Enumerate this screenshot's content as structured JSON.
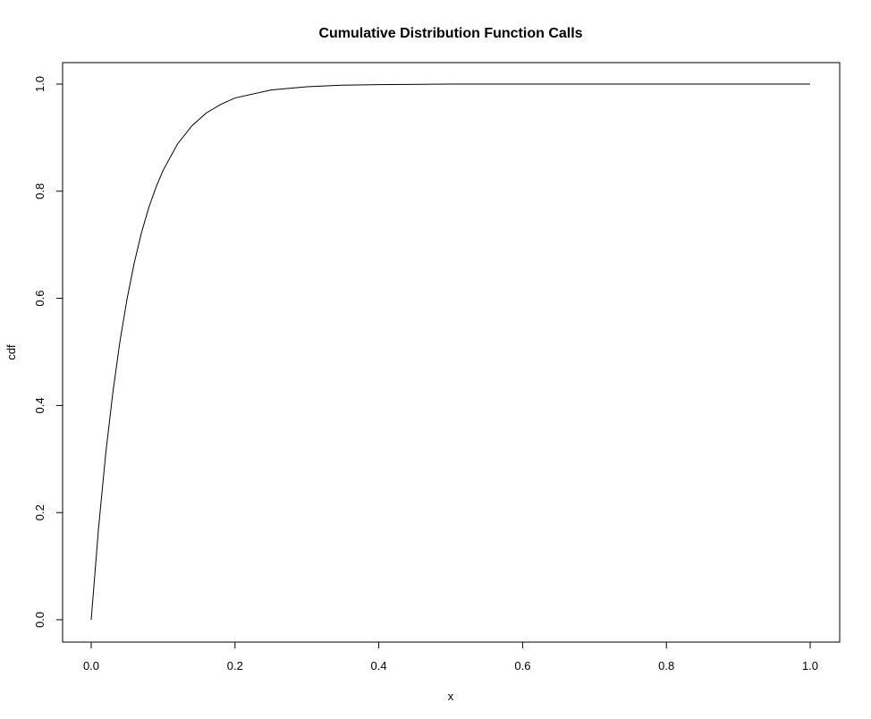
{
  "chart_data": {
    "type": "line",
    "title": "Cumulative Distribution Function Calls",
    "xlabel": "x",
    "ylabel": "cdf",
    "xlim": [
      0.0,
      1.0
    ],
    "ylim": [
      0.0,
      1.0
    ],
    "x_ticks": [
      "0.0",
      "0.2",
      "0.4",
      "0.6",
      "0.8",
      "1.0"
    ],
    "y_ticks": [
      "0.0",
      "0.2",
      "0.4",
      "0.6",
      "0.8",
      "1.0"
    ],
    "grid": false,
    "legend": "none",
    "line_color": "#000000",
    "series": [
      {
        "x": [
          0.0,
          0.01,
          0.02,
          0.03,
          0.04,
          0.05,
          0.06,
          0.07,
          0.08,
          0.09,
          0.1,
          0.12,
          0.14,
          0.16,
          0.18,
          0.2,
          0.25,
          0.3,
          0.35,
          0.4,
          0.5,
          0.6,
          0.7,
          0.8,
          0.9,
          1.0
        ],
        "y": [
          0.0,
          0.168,
          0.308,
          0.423,
          0.52,
          0.6,
          0.667,
          0.723,
          0.769,
          0.807,
          0.839,
          0.888,
          0.922,
          0.946,
          0.962,
          0.974,
          0.989,
          0.995,
          0.998,
          0.999,
          1.0,
          1.0,
          1.0,
          1.0,
          1.0,
          1.0
        ]
      }
    ]
  }
}
